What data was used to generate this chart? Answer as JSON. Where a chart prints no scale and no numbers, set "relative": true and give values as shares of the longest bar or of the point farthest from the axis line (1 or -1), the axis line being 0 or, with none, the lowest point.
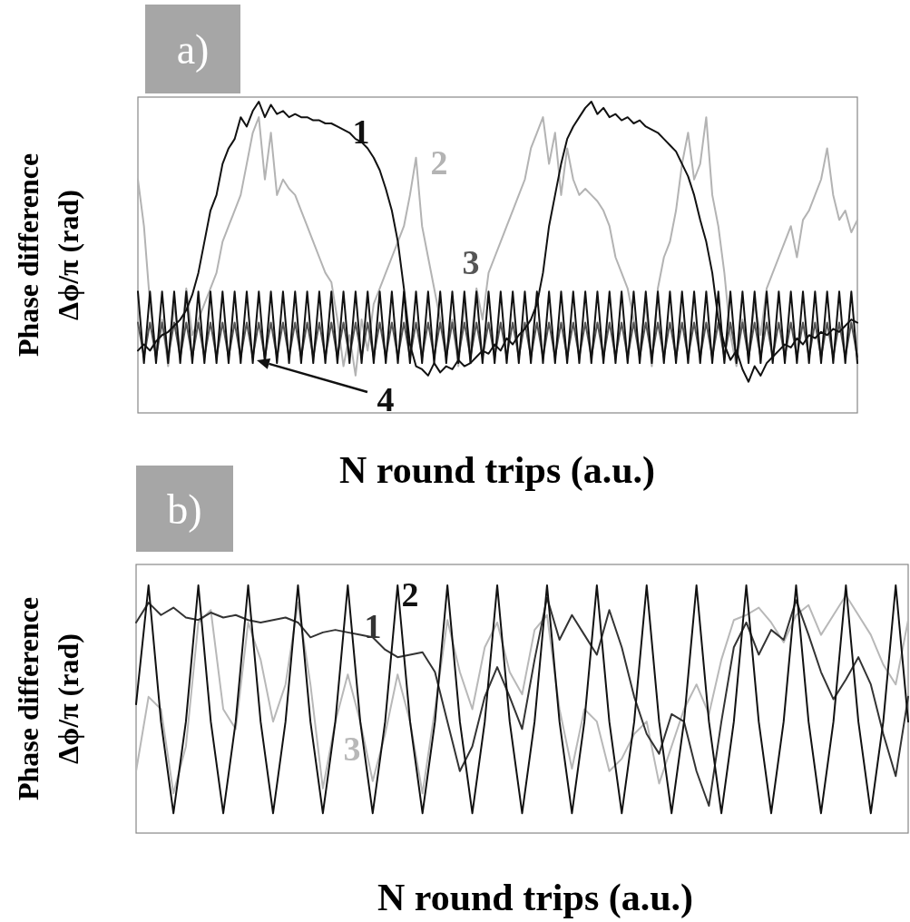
{
  "chart_data": [
    {
      "type": "line",
      "title": "a)",
      "xlabel": "N round trips (a.u.)",
      "ylabel": "Phase difference\nΔϕ/π (rad)",
      "relative": true,
      "categories": [
        null,
        null,
        null,
        null,
        null,
        null,
        null,
        null,
        null,
        null,
        null,
        null,
        null,
        null,
        null,
        null,
        null,
        null,
        null,
        null,
        null,
        null,
        null,
        null,
        null,
        null,
        null,
        null,
        null,
        null,
        null,
        null,
        null,
        null,
        null,
        null,
        null,
        null,
        null,
        null,
        null,
        null,
        null,
        null,
        null,
        null,
        null,
        null,
        null,
        null,
        null,
        null,
        null,
        null,
        null,
        null,
        null,
        null,
        null,
        null,
        null,
        null,
        null,
        null,
        null,
        null,
        null,
        null,
        null,
        null,
        null,
        null,
        null,
        null,
        null,
        null,
        null,
        null,
        null,
        null,
        null,
        null,
        null,
        null,
        null,
        null,
        null,
        null,
        null,
        null,
        null,
        null,
        null,
        null,
        null,
        null,
        null,
        null,
        null,
        null,
        null,
        null,
        null,
        null,
        null,
        null,
        null,
        null,
        null,
        null,
        null,
        null,
        null,
        null,
        null,
        null,
        null,
        null,
        null,
        null
      ],
      "series": [
        {
          "name": "2",
          "color": "#b3b3b3",
          "values": [
            0.75,
            0.6,
            0.35,
            0.2,
            0.3,
            0.15,
            0.35,
            0.2,
            0.4,
            0.25,
            0.3,
            0.35,
            0.4,
            0.45,
            0.55,
            0.6,
            0.65,
            0.7,
            0.8,
            0.9,
            0.95,
            0.75,
            0.9,
            0.7,
            0.75,
            0.72,
            0.7,
            0.65,
            0.6,
            0.55,
            0.5,
            0.45,
            0.42,
            0.3,
            0.15,
            0.25,
            0.12,
            0.3,
            0.2,
            0.35,
            0.4,
            0.45,
            0.5,
            0.55,
            0.6,
            0.7,
            0.82,
            0.6,
            0.5,
            0.4,
            0.3,
            0.2,
            0.3,
            0.15,
            0.35,
            0.2,
            0.4,
            0.3,
            0.45,
            0.5,
            0.55,
            0.6,
            0.65,
            0.7,
            0.75,
            0.85,
            0.9,
            0.95,
            0.8,
            0.9,
            0.7,
            0.85,
            0.75,
            0.7,
            0.72,
            0.7,
            0.68,
            0.65,
            0.6,
            0.5,
            0.45,
            0.4,
            0.3,
            0.2,
            0.35,
            0.15,
            0.4,
            0.5,
            0.55,
            0.65,
            0.8,
            0.9,
            0.75,
            0.8,
            0.95,
            0.7,
            0.6,
            0.45,
            0.25,
            0.15,
            0.3,
            0.2,
            0.35,
            0.25,
            0.4,
            0.45,
            0.5,
            0.55,
            0.6,
            0.5,
            0.62,
            0.65,
            0.7,
            0.75,
            0.85,
            0.7,
            0.62,
            0.65,
            0.58,
            0.62
          ]
        },
        {
          "name": "3",
          "color": "#555555",
          "values": [
            0.29,
            0.18,
            0.29,
            0.18,
            0.29,
            0.18,
            0.29,
            0.18,
            0.29,
            0.18,
            0.29,
            0.18,
            0.29,
            0.18,
            0.29,
            0.18,
            0.29,
            0.18,
            0.29,
            0.18,
            0.29,
            0.18,
            0.29,
            0.18,
            0.29,
            0.18,
            0.29,
            0.18,
            0.29,
            0.18,
            0.29,
            0.18,
            0.29,
            0.18,
            0.29,
            0.18,
            0.29,
            0.18,
            0.29,
            0.18,
            0.29,
            0.18,
            0.29,
            0.18,
            0.29,
            0.18,
            0.29,
            0.18,
            0.29,
            0.18,
            0.29,
            0.18,
            0.29,
            0.18,
            0.29,
            0.18,
            0.29,
            0.18,
            0.29,
            0.18,
            0.29,
            0.18,
            0.29,
            0.18,
            0.29,
            0.18,
            0.29,
            0.18,
            0.29,
            0.18,
            0.29,
            0.18,
            0.29,
            0.18,
            0.29,
            0.18,
            0.29,
            0.18,
            0.29,
            0.18,
            0.29,
            0.18,
            0.29,
            0.18,
            0.29,
            0.18,
            0.29,
            0.18,
            0.29,
            0.18,
            0.29,
            0.18,
            0.29,
            0.18,
            0.29,
            0.18,
            0.29,
            0.18,
            0.29,
            0.18,
            0.29,
            0.18,
            0.29,
            0.18,
            0.29,
            0.18,
            0.29,
            0.18,
            0.29,
            0.18,
            0.29,
            0.18,
            0.29,
            0.18,
            0.29,
            0.18,
            0.29,
            0.18,
            0.29,
            0.18
          ]
        },
        {
          "name": "4",
          "color": "#111111",
          "values": [
            0.39,
            0.16,
            0.39,
            0.16,
            0.39,
            0.16,
            0.39,
            0.16,
            0.39,
            0.16,
            0.39,
            0.16,
            0.39,
            0.16,
            0.39,
            0.16,
            0.39,
            0.16,
            0.39,
            0.16,
            0.39,
            0.16,
            0.39,
            0.16,
            0.39,
            0.16,
            0.39,
            0.16,
            0.39,
            0.16,
            0.39,
            0.16,
            0.39,
            0.16,
            0.39,
            0.16,
            0.39,
            0.16,
            0.39,
            0.16,
            0.39,
            0.16,
            0.39,
            0.16,
            0.39,
            0.16,
            0.39,
            0.16,
            0.39,
            0.16,
            0.39,
            0.16,
            0.39,
            0.16,
            0.39,
            0.16,
            0.39,
            0.16,
            0.39,
            0.16,
            0.39,
            0.16,
            0.39,
            0.16,
            0.39,
            0.16,
            0.39,
            0.16,
            0.39,
            0.16,
            0.39,
            0.16,
            0.39,
            0.16,
            0.39,
            0.16,
            0.39,
            0.16,
            0.39,
            0.16,
            0.39,
            0.16,
            0.39,
            0.16,
            0.39,
            0.16,
            0.39,
            0.16,
            0.39,
            0.16,
            0.39,
            0.16,
            0.39,
            0.16,
            0.39,
            0.16,
            0.39,
            0.16,
            0.39,
            0.16,
            0.39,
            0.16,
            0.39,
            0.16,
            0.39,
            0.16,
            0.39,
            0.16,
            0.39,
            0.16,
            0.39,
            0.16,
            0.39,
            0.16,
            0.39,
            0.16,
            0.39,
            0.16,
            0.39,
            0.16
          ]
        },
        {
          "name": "1",
          "color": "#111111",
          "values": [
            0.2,
            0.22,
            0.2,
            0.23,
            0.25,
            0.26,
            0.28,
            0.3,
            0.33,
            0.38,
            0.45,
            0.55,
            0.65,
            0.7,
            0.8,
            0.85,
            0.88,
            0.95,
            0.92,
            0.97,
            1.0,
            0.95,
            0.99,
            0.96,
            0.97,
            0.95,
            0.96,
            0.95,
            0.95,
            0.94,
            0.94,
            0.93,
            0.93,
            0.92,
            0.91,
            0.9,
            0.88,
            0.87,
            0.85,
            0.82,
            0.78,
            0.72,
            0.65,
            0.55,
            0.4,
            0.22,
            0.15,
            0.14,
            0.12,
            0.16,
            0.13,
            0.15,
            0.14,
            0.17,
            0.15,
            0.16,
            0.18,
            0.2,
            0.19,
            0.22,
            0.2,
            0.24,
            0.22,
            0.25,
            0.27,
            0.3,
            0.35,
            0.45,
            0.6,
            0.7,
            0.8,
            0.88,
            0.92,
            0.95,
            0.98,
            1.0,
            0.96,
            0.98,
            0.95,
            0.96,
            0.94,
            0.95,
            0.93,
            0.94,
            0.92,
            0.91,
            0.9,
            0.88,
            0.86,
            0.84,
            0.8,
            0.76,
            0.7,
            0.62,
            0.55,
            0.45,
            0.3,
            0.22,
            0.17,
            0.2,
            0.14,
            0.1,
            0.15,
            0.12,
            0.16,
            0.18,
            0.2,
            0.22,
            0.21,
            0.24,
            0.22,
            0.25,
            0.24,
            0.26,
            0.25,
            0.27,
            0.26,
            0.28,
            0.3,
            0.29
          ]
        }
      ]
    },
    {
      "type": "line",
      "title": "b)",
      "xlabel": "N round trips (a.u.)",
      "ylabel": "Phase difference\nΔϕ/π (rad)",
      "relative": true,
      "categories": [
        null,
        null,
        null,
        null,
        null,
        null,
        null,
        null,
        null,
        null,
        null,
        null,
        null,
        null,
        null,
        null,
        null,
        null,
        null,
        null,
        null,
        null,
        null,
        null,
        null,
        null,
        null,
        null,
        null,
        null,
        null,
        null,
        null,
        null,
        null,
        null,
        null,
        null,
        null,
        null,
        null,
        null,
        null,
        null,
        null,
        null,
        null,
        null,
        null,
        null,
        null,
        null,
        null,
        null,
        null,
        null,
        null,
        null,
        null,
        null,
        null,
        null,
        null
      ],
      "series": [
        {
          "name": "3",
          "color": "#b8b8b8",
          "values": [
            0.25,
            0.55,
            0.5,
            0.16,
            0.35,
            0.85,
            0.9,
            0.5,
            0.42,
            0.85,
            0.7,
            0.45,
            0.6,
            0.93,
            0.6,
            0.18,
            0.45,
            0.64,
            0.45,
            0.21,
            0.4,
            0.64,
            0.45,
            0.16,
            0.5,
            0.86,
            0.65,
            0.5,
            0.75,
            0.85,
            0.65,
            0.56,
            0.82,
            0.88,
            0.5,
            0.26,
            0.5,
            0.45,
            0.25,
            0.3,
            0.4,
            0.45,
            0.2,
            0.35,
            0.5,
            0.6,
            0.48,
            0.7,
            0.86,
            0.88,
            0.91,
            0.85,
            0.77,
            0.88,
            0.92,
            0.8,
            0.88,
            0.96,
            0.88,
            0.8,
            0.68,
            0.6,
            0.86
          ]
        },
        {
          "name": "1",
          "color": "#333333",
          "values": [
            0.85,
            0.93,
            0.88,
            0.91,
            0.87,
            0.86,
            0.89,
            0.87,
            0.88,
            0.86,
            0.85,
            0.86,
            0.87,
            0.85,
            0.79,
            0.81,
            0.82,
            0.81,
            0.8,
            0.79,
            0.74,
            0.71,
            0.72,
            0.73,
            0.65,
            0.45,
            0.25,
            0.35,
            0.55,
            0.67,
            0.55,
            0.42,
            0.7,
            0.95,
            0.78,
            0.88,
            0.8,
            0.72,
            0.9,
            0.75,
            0.55,
            0.4,
            0.32,
            0.48,
            0.45,
            0.25,
            0.11,
            0.45,
            0.75,
            0.85,
            0.72,
            0.82,
            0.78,
            0.94,
            0.8,
            0.65,
            0.54,
            0.62,
            0.71,
            0.6,
            0.4,
            0.23,
            0.55
          ]
        },
        {
          "name": "2",
          "color": "#111111",
          "values": [
            0.52,
            1,
            0.45,
            0.08,
            0.45,
            1,
            0.45,
            0.08,
            0.45,
            1,
            0.45,
            0.08,
            0.45,
            1,
            0.45,
            0.08,
            0.45,
            1,
            0.45,
            0.08,
            0.45,
            1,
            0.45,
            0.08,
            0.45,
            1,
            0.45,
            0.08,
            0.45,
            1,
            0.45,
            0.08,
            0.45,
            1,
            0.45,
            0.08,
            0.45,
            1,
            0.45,
            0.08,
            0.45,
            1,
            0.45,
            0.08,
            0.45,
            1,
            0.45,
            0.08,
            0.45,
            1,
            0.45,
            0.08,
            0.45,
            1,
            0.45,
            0.08,
            0.45,
            1,
            0.45,
            0.08,
            0.45,
            1,
            0.45
          ]
        }
      ]
    }
  ]
}
